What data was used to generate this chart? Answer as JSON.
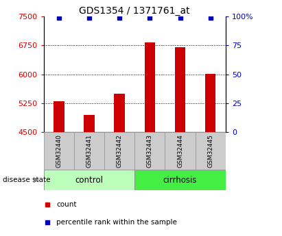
{
  "title": "GDS1354 / 1371761_at",
  "samples": [
    "GSM32440",
    "GSM32441",
    "GSM32442",
    "GSM32443",
    "GSM32444",
    "GSM32445"
  ],
  "count_values": [
    5300,
    4950,
    5490,
    6820,
    6700,
    6020
  ],
  "percentile_values": [
    99,
    99,
    99,
    99,
    99,
    99
  ],
  "y_min": 4500,
  "y_max": 7500,
  "y_ticks": [
    4500,
    5250,
    6000,
    6750,
    7500
  ],
  "y_right_ticks": [
    0,
    25,
    50,
    75,
    100
  ],
  "y_right_labels": [
    "0",
    "25",
    "50",
    "75",
    "100%"
  ],
  "bar_color": "#cc0000",
  "dot_color": "#0000bb",
  "bar_width": 0.35,
  "groups": [
    {
      "label": "control",
      "indices": [
        0,
        1,
        2
      ],
      "color": "#bbffbb"
    },
    {
      "label": "cirrhosis",
      "indices": [
        3,
        4,
        5
      ],
      "color": "#44ee44"
    }
  ],
  "disease_state_label": "disease state",
  "legend_items": [
    {
      "label": "count",
      "color": "#cc0000"
    },
    {
      "label": "percentile rank within the sample",
      "color": "#0000bb"
    }
  ],
  "grid_color": "#000000",
  "sample_box_color": "#cccccc",
  "title_fontsize": 10,
  "tick_fontsize": 8,
  "label_fontsize": 8
}
